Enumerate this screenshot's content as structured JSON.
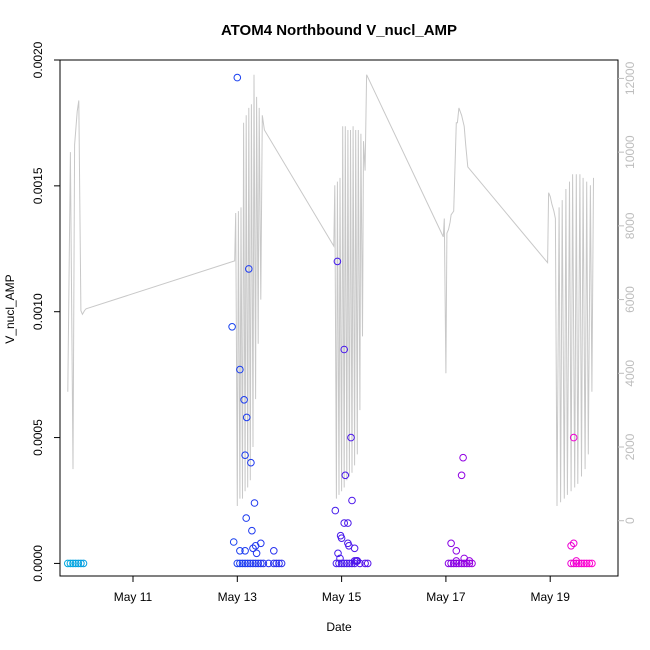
{
  "chart_data": {
    "type": "scatter",
    "title": "ATOM4 Northbound V_nucl_AMP",
    "xlabel": "Date",
    "ylabel": "V_nucl_AMP",
    "x_unit": "days since May 9",
    "xlim": [
      0.6,
      11.3
    ],
    "ylim": [
      -5e-05,
      0.002
    ],
    "y2lim": [
      -1500,
      12500
    ],
    "x_ticks": [
      {
        "value": 2,
        "label": "May 11"
      },
      {
        "value": 4,
        "label": "May 13"
      },
      {
        "value": 6,
        "label": "May 15"
      },
      {
        "value": 8,
        "label": "May 17"
      },
      {
        "value": 10,
        "label": "May 19"
      }
    ],
    "y_ticks": [
      {
        "value": 0,
        "label": "0.0000"
      },
      {
        "value": 0.0005,
        "label": "0.0005"
      },
      {
        "value": 0.001,
        "label": "0.0010"
      },
      {
        "value": 0.0015,
        "label": "0.0015"
      },
      {
        "value": 0.002,
        "label": "0.0020"
      }
    ],
    "y2_ticks": [
      {
        "value": 0,
        "label": "0"
      },
      {
        "value": 2000,
        "label": "2000"
      },
      {
        "value": 4000,
        "label": "4000"
      },
      {
        "value": 6000,
        "label": "6000"
      },
      {
        "value": 8000,
        "label": "8000"
      },
      {
        "value": 10000,
        "label": "10000"
      },
      {
        "value": 12000,
        "label": "12000"
      }
    ],
    "series": [
      {
        "name": "V_nucl_AMP",
        "style": "points",
        "color_gradient": [
          "#00a8e0",
          "#1a3cf0",
          "#6a00e8",
          "#ff00d0"
        ],
        "x": [
          0.75,
          0.8,
          0.85,
          0.9,
          0.95,
          1.0,
          1.05,
          4.0,
          4.05,
          4.1,
          4.15,
          4.2,
          4.25,
          4.3,
          4.35,
          4.4,
          4.45,
          4.5,
          4.6,
          4.7,
          4.75,
          4.8,
          4.85,
          4.05,
          4.15,
          4.3,
          4.35,
          4.45,
          4.7,
          3.9,
          3.93,
          4.0,
          4.05,
          4.13,
          4.15,
          4.17,
          4.18,
          4.22,
          4.26,
          4.28,
          4.33,
          4.37,
          5.9,
          5.95,
          6.0,
          6.05,
          6.1,
          6.15,
          6.2,
          6.25,
          6.35,
          6.45,
          6.5,
          5.93,
          5.97,
          6.0,
          6.05,
          6.12,
          6.25,
          6.3,
          5.88,
          5.92,
          5.98,
          6.05,
          6.07,
          6.12,
          6.14,
          6.18,
          6.2,
          6.25,
          6.28,
          6.3,
          8.05,
          8.1,
          8.15,
          8.2,
          8.25,
          8.3,
          8.35,
          8.4,
          8.45,
          8.5,
          8.1,
          8.2,
          8.35,
          8.45,
          8.33,
          8.3,
          8.2,
          10.4,
          10.45,
          10.5,
          10.55,
          10.6,
          10.65,
          10.7,
          10.75,
          10.8,
          10.45,
          10.4,
          10.45,
          10.5
        ],
        "y": [
          0,
          0,
          0,
          0,
          0,
          0,
          0,
          0,
          0,
          0,
          0,
          0,
          0,
          0,
          0,
          0,
          0,
          0,
          0,
          0,
          0,
          0,
          0,
          5e-05,
          5e-05,
          6e-05,
          7e-05,
          8e-05,
          5e-05,
          0.00094,
          8.5e-05,
          0.00193,
          0.00077,
          0.00065,
          0.00043,
          0.00018,
          0.00058,
          0.00117,
          0.0004,
          0.00013,
          0.00024,
          4e-05,
          0,
          0,
          0,
          0,
          0,
          0,
          0,
          0,
          0,
          0,
          0,
          4e-05,
          2e-05,
          0.0001,
          0.00016,
          8e-05,
          6e-05,
          1e-05,
          0.00021,
          0.0012,
          0.00011,
          0.00085,
          0.00035,
          0.00016,
          7e-05,
          0.0005,
          0.00025,
          1e-05,
          1e-05,
          1e-05,
          0,
          0,
          0,
          0,
          0,
          0,
          0,
          0,
          0,
          0,
          8e-05,
          5e-05,
          2e-05,
          1e-05,
          0.00042,
          0.00035,
          1e-05,
          0,
          0,
          0,
          0,
          0,
          0,
          0,
          0,
          0,
          8e-05,
          7e-05,
          0.0005,
          1e-05
        ]
      },
      {
        "name": "secondary axis line",
        "style": "line",
        "color": "#c8c8c8",
        "axis": "right",
        "x": [
          0.75,
          0.8,
          0.85,
          0.88,
          0.93,
          0.96,
          1.0,
          1.03,
          1.05,
          1.07,
          1.1,
          3.95,
          3.97,
          4.0,
          4.02,
          4.05,
          4.07,
          4.1,
          4.12,
          4.15,
          4.17,
          4.2,
          4.22,
          4.25,
          4.27,
          4.3,
          4.32,
          4.35,
          4.37,
          4.4,
          4.42,
          4.45,
          4.48,
          4.52,
          5.85,
          5.87,
          5.9,
          5.92,
          5.95,
          5.97,
          6.0,
          6.02,
          6.05,
          6.07,
          6.1,
          6.12,
          6.15,
          6.17,
          6.2,
          6.22,
          6.25,
          6.27,
          6.3,
          6.32,
          6.35,
          6.37,
          6.4,
          6.42,
          6.45,
          6.48,
          7.95,
          7.97,
          8.0,
          8.02,
          8.05,
          8.08,
          8.1,
          8.15,
          8.2,
          8.22,
          8.25,
          8.3,
          8.35,
          8.38,
          8.42,
          9.95,
          9.97,
          10.0,
          10.03,
          10.07,
          10.1,
          10.13,
          10.17,
          10.2,
          10.23,
          10.27,
          10.3,
          10.33,
          10.37,
          10.4,
          10.43,
          10.47,
          10.5,
          10.53,
          10.57,
          10.6,
          10.63,
          10.67,
          10.7,
          10.73,
          10.77,
          10.8,
          10.83
        ],
        "y": [
          3500,
          10000,
          1400,
          10200,
          11100,
          11400,
          5700,
          5600,
          5650,
          5700,
          5750,
          7050,
          8350,
          400,
          8400,
          600,
          8500,
          600,
          10800,
          800,
          11000,
          900,
          11200,
          1100,
          11300,
          2000,
          12100,
          3300,
          11500,
          4800,
          11200,
          6000,
          11000,
          10600,
          7450,
          9100,
          600,
          9200,
          700,
          9300,
          800,
          10700,
          900,
          10700,
          1100,
          10600,
          1200,
          10600,
          1300,
          10700,
          1500,
          10600,
          1800,
          10600,
          3000,
          10500,
          5000,
          10300,
          9500,
          12100,
          7700,
          8200,
          4000,
          7800,
          7900,
          8100,
          8300,
          8400,
          10800,
          10800,
          11200,
          11000,
          10700,
          10200,
          9600,
          7000,
          8900,
          8800,
          8600,
          8400,
          8200,
          400,
          8500,
          500,
          8700,
          600,
          9000,
          700,
          9200,
          800,
          9400,
          900,
          9400,
          1000,
          9400,
          1200,
          9300,
          1400,
          9200,
          1800,
          9100,
          3500,
          9300
        ]
      }
    ]
  }
}
